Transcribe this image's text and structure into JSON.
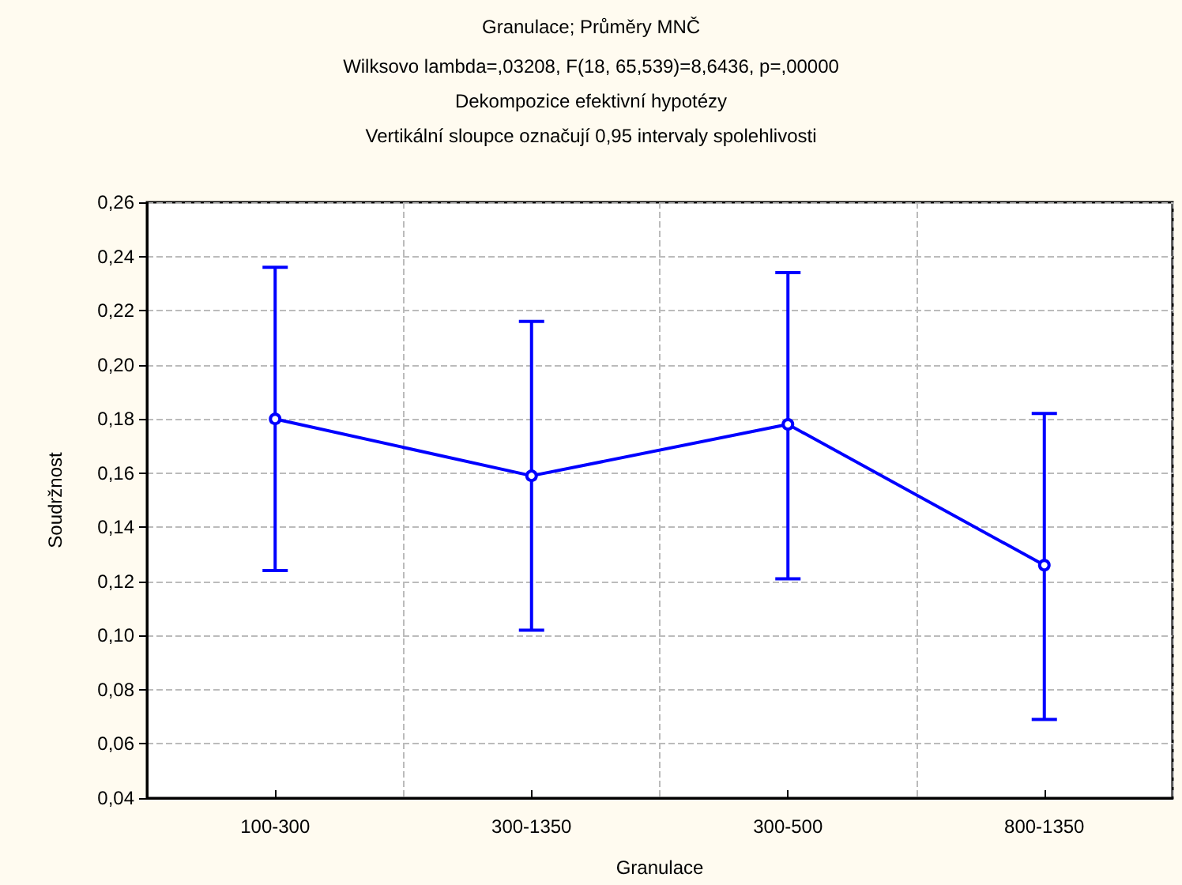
{
  "chart_data": {
    "type": "line",
    "title": "Granulace; Průměry MNČ",
    "subtitle": "Wilksovo lambda=,03208, F(18, 65,539)=8,6436, p=,00000\nDekompozice efektivní hypotézy\nVertikální sloupce označují 0,95 intervaly spolehlivosti",
    "xlabel": "Granulace",
    "ylabel": "Soudržnost",
    "categories": [
      "100-300",
      "300-1350",
      "300-500",
      "800-1350"
    ],
    "series": [
      {
        "color": "#0000ff",
        "values": [
          0.18,
          0.159,
          0.178,
          0.126
        ],
        "errors": [
          [
            0.124,
            0.236
          ],
          [
            0.102,
            0.216
          ],
          [
            0.121,
            0.234
          ],
          [
            0.069,
            0.182
          ]
        ]
      }
    ],
    "ylim": [
      0.04,
      0.26
    ],
    "yticks": [
      {
        "value": 0.04,
        "label": "0,04"
      },
      {
        "value": 0.06,
        "label": "0,06"
      },
      {
        "value": 0.08,
        "label": "0,08"
      },
      {
        "value": 0.1,
        "label": "0,10"
      },
      {
        "value": 0.12,
        "label": "0,12"
      },
      {
        "value": 0.14,
        "label": "0,14"
      },
      {
        "value": 0.16,
        "label": "0,16"
      },
      {
        "value": 0.18,
        "label": "0,18"
      },
      {
        "value": 0.2,
        "label": "0,20"
      },
      {
        "value": 0.22,
        "label": "0,22"
      },
      {
        "value": 0.24,
        "label": "0,24"
      },
      {
        "value": 0.26,
        "label": "0,26"
      }
    ],
    "grid": true,
    "marker": "circle",
    "line_style": "solid"
  }
}
